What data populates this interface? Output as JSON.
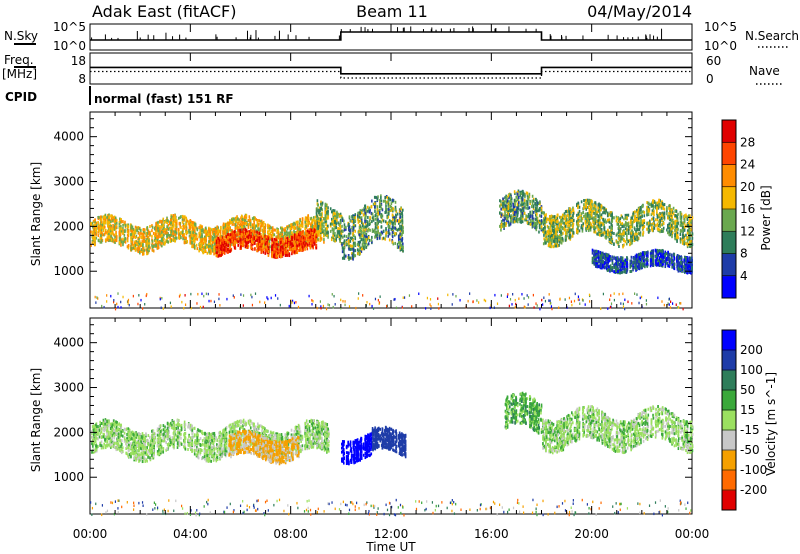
{
  "header": {
    "station": "Adak East (fitACF)",
    "beam": "Beam 11",
    "date": "04/May/2014"
  },
  "left_labels": {
    "nsky": "N.Sky",
    "freq_top": "Freq.",
    "freq_unit": "[MHz]",
    "cpid": "CPID"
  },
  "right_labels": {
    "nsearch": "N.Search",
    "nave": "Nave"
  },
  "cpid_text": "normal (fast) 151 RF",
  "x_axis": {
    "title": "Time UT",
    "ticks": [
      "00:00",
      "04:00",
      "08:00",
      "12:00",
      "16:00",
      "20:00",
      "00:00"
    ]
  },
  "colors": {
    "power": [
      "#0000ff",
      "#1e3ca8",
      "#2e7d5a",
      "#6aa84f",
      "#f5b800",
      "#ff8c00",
      "#ff4500",
      "#e00000"
    ],
    "velocity": [
      "#e00000",
      "#ff6a00",
      "#f5a000",
      "#c8c8c8",
      "#9be060",
      "#3aa83a",
      "#2e7d5a",
      "#1e3ca8",
      "#0000ff"
    ],
    "ground_scatter": "#c0c0c0"
  },
  "chart_data": [
    {
      "type": "line",
      "name_label": "N.Sky / N.Search",
      "y_tick_labels": [
        "10^5",
        "10^0"
      ],
      "right_tick_labels": [
        "10^5",
        "10^0"
      ],
      "series_steps": [
        {
          "start": "00:00",
          "end": "10:00",
          "level": "low"
        },
        {
          "start": "10:00",
          "end": "18:00",
          "level": "high"
        },
        {
          "start": "18:00",
          "end": "24:00",
          "level": "low"
        }
      ]
    },
    {
      "type": "line",
      "name_label": "Freq. / Nave",
      "y_tick_labels": [
        "18",
        "8"
      ],
      "right_tick_labels": [
        "60",
        "0"
      ],
      "freq_steps": [
        {
          "start": "00:00",
          "end": "10:00",
          "value": 13.5
        },
        {
          "start": "10:00",
          "end": "18:00",
          "value": 10.6
        },
        {
          "start": "18:00",
          "end": "24:00",
          "value": 13.5
        }
      ],
      "nave_steps": [
        {
          "start": "00:00",
          "end": "10:00",
          "value": 22
        },
        {
          "start": "10:00",
          "end": "18:00",
          "value": 7
        },
        {
          "start": "18:00",
          "end": "24:00",
          "value": 22
        }
      ]
    },
    {
      "type": "heatmap",
      "quantity": "Power",
      "ylabel": "Slant Range [km]",
      "yticks": [
        1000,
        2000,
        3000,
        4000
      ],
      "ylim": [
        180,
        4550
      ],
      "colorbar_label": "Power [dB]",
      "colorbar_ticks": [
        4,
        8,
        12,
        16,
        20,
        24,
        28
      ],
      "colorbar_range": [
        0,
        32
      ],
      "echo_regions": [
        {
          "t0": 0.0,
          "t1": 9.3,
          "r_center": 1850,
          "r_width": 420,
          "power": 18
        },
        {
          "t0": 5.0,
          "t1": 9.0,
          "r_center": 1650,
          "r_width": 300,
          "power": 27
        },
        {
          "t0": 9.0,
          "t1": 10.0,
          "r_center": 2100,
          "r_width": 500,
          "power": 14
        },
        {
          "t0": 10.0,
          "t1": 12.5,
          "r_center": 2000,
          "r_width": 700,
          "power": 12
        },
        {
          "t0": 16.3,
          "t1": 18.0,
          "r_center": 2300,
          "r_width": 500,
          "power": 12
        },
        {
          "t0": 18.0,
          "t1": 24.0,
          "r_center": 2100,
          "r_width": 500,
          "power": 14
        },
        {
          "t0": 20.0,
          "t1": 24.0,
          "r_center": 1250,
          "r_width": 250,
          "power": 6
        }
      ]
    },
    {
      "type": "heatmap",
      "quantity": "Velocity",
      "ylabel": "Slant Range [km]",
      "yticks": [
        1000,
        2000,
        3000,
        4000
      ],
      "ylim": [
        180,
        4550
      ],
      "colorbar_label": "Velocity [m s^-1]",
      "colorbar_ticks": [
        200,
        100,
        50,
        15,
        -15,
        -50,
        -100,
        -200
      ],
      "echo_regions": [
        {
          "t0": 0.0,
          "t1": 9.5,
          "r_center": 1850,
          "r_width": 450,
          "velocity": 0
        },
        {
          "t0": 5.5,
          "t1": 8.3,
          "r_center": 1700,
          "r_width": 350,
          "velocity": -60
        },
        {
          "t0": 10.0,
          "t1": 11.2,
          "r_center": 1700,
          "r_width": 350,
          "velocity": 250
        },
        {
          "t0": 11.2,
          "t1": 12.6,
          "r_center": 1800,
          "r_width": 350,
          "velocity": 150
        },
        {
          "t0": 16.5,
          "t1": 18.0,
          "r_center": 2400,
          "r_width": 500,
          "velocity": 30
        },
        {
          "t0": 18.0,
          "t1": 24.0,
          "r_center": 2100,
          "r_width": 500,
          "velocity": 0
        }
      ]
    }
  ]
}
